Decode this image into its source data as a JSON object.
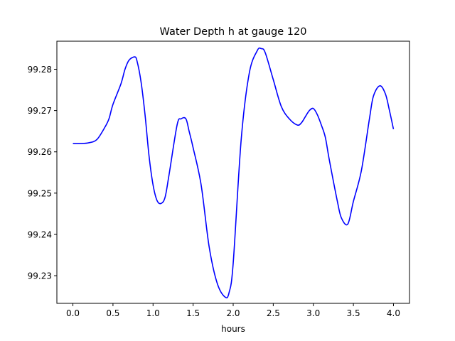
{
  "chart_data": {
    "type": "line",
    "title": "Water Depth h at gauge 120",
    "xlabel": "hours",
    "ylabel": "",
    "xlim": [
      -0.2,
      4.2
    ],
    "ylim": [
      99.2233,
      99.2868
    ],
    "xticks": [
      0.0,
      0.5,
      1.0,
      1.5,
      2.0,
      2.5,
      3.0,
      3.5,
      4.0
    ],
    "xtick_labels": [
      "0.0",
      "0.5",
      "1.0",
      "1.5",
      "2.0",
      "2.5",
      "3.0",
      "3.5",
      "4.0"
    ],
    "yticks": [
      99.23,
      99.24,
      99.25,
      99.26,
      99.27,
      99.28
    ],
    "ytick_labels": [
      "99.23",
      "99.24",
      "99.25",
      "99.26",
      "99.27",
      "99.28"
    ],
    "grid": false,
    "legend": "none",
    "series": [
      {
        "color": "#0000ff",
        "x": [
          0.0,
          0.1,
          0.2,
          0.3,
          0.4,
          0.45,
          0.5,
          0.6,
          0.65,
          0.7,
          0.77,
          0.8,
          0.85,
          0.9,
          0.95,
          1.0,
          1.05,
          1.1,
          1.15,
          1.2,
          1.3,
          1.35,
          1.41,
          1.45,
          1.5,
          1.6,
          1.7,
          1.8,
          1.9,
          1.95,
          2.0,
          2.1,
          2.2,
          2.3,
          2.35,
          2.4,
          2.5,
          2.6,
          2.7,
          2.8,
          2.85,
          2.9,
          2.95,
          3.0,
          3.05,
          3.1,
          3.15,
          3.2,
          3.3,
          3.35,
          3.43,
          3.5,
          3.6,
          3.7,
          3.75,
          3.83,
          3.9,
          3.95,
          4.0
        ],
        "y": [
          99.262,
          99.262,
          99.2622,
          99.263,
          99.266,
          99.268,
          99.2715,
          99.2765,
          99.28,
          99.2822,
          99.283,
          99.282,
          99.277,
          99.269,
          99.259,
          99.252,
          99.2482,
          99.2475,
          99.249,
          99.2545,
          99.2665,
          99.268,
          99.268,
          99.265,
          99.261,
          99.252,
          99.237,
          99.2282,
          99.2248,
          99.226,
          99.233,
          99.263,
          99.279,
          99.2845,
          99.285,
          99.284,
          99.2775,
          99.271,
          99.268,
          99.2665,
          99.267,
          99.2685,
          99.27,
          99.2705,
          99.269,
          99.2665,
          99.2635,
          99.258,
          99.248,
          99.244,
          99.2425,
          99.248,
          99.2555,
          99.268,
          99.2735,
          99.276,
          99.274,
          99.27,
          99.2655
        ]
      }
    ]
  }
}
